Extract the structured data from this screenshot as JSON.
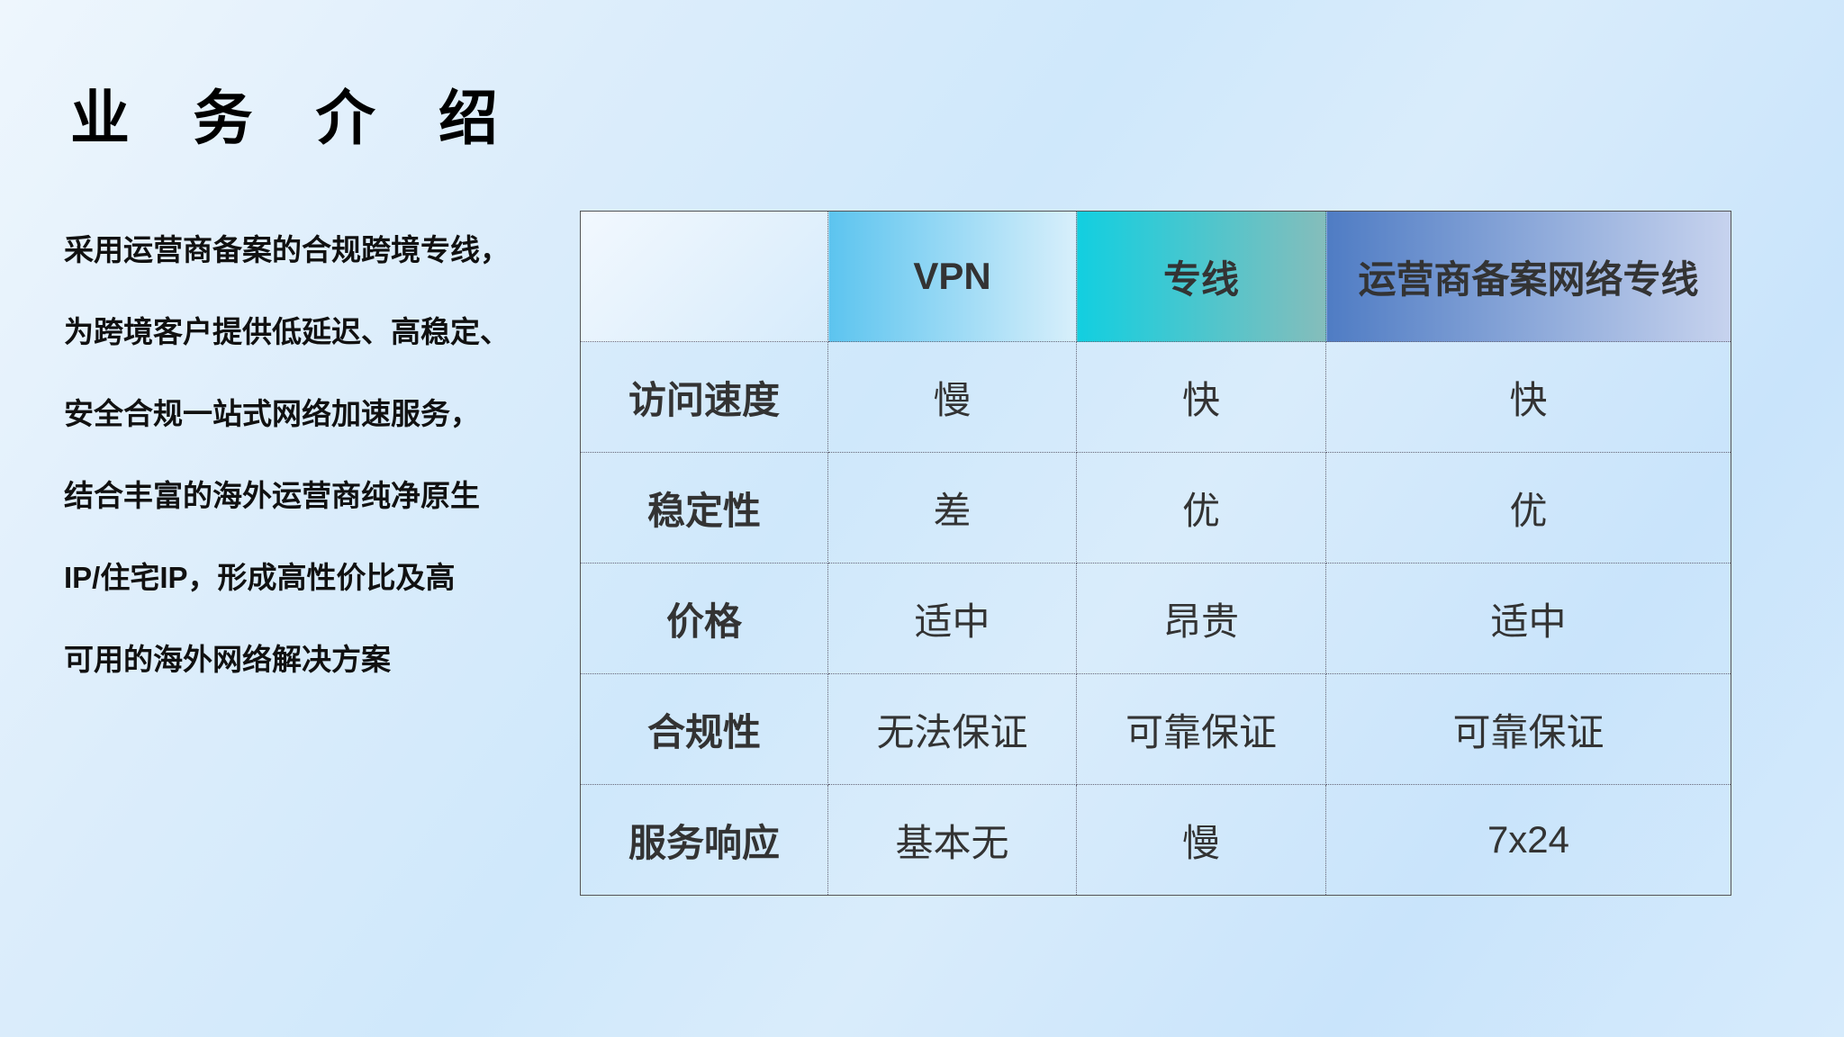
{
  "title": "业 务 介 绍",
  "intro": [
    "采用运营商备案的合规跨境专线，",
    "为跨境客户提供低延迟、高稳定、",
    "安全合规一站式网络加速服务，",
    "结合丰富的海外运营商纯净原生",
    "IP/住宅IP，形成高性价比及高",
    "可用的海外网络解决方案"
  ],
  "table": {
    "headers": [
      "",
      "VPN",
      "专线",
      "运营商备案网络专线"
    ],
    "header_colors": [
      "#5cc4ef",
      "#12cfe0",
      "#4f7cc4"
    ],
    "rows": [
      [
        "访问速度",
        "慢",
        "快",
        "快"
      ],
      [
        "稳定性",
        "差",
        "优",
        "优"
      ],
      [
        "价格",
        "适中",
        "昂贵",
        "适中"
      ],
      [
        "合规性",
        "无法保证",
        "可靠保证",
        "可靠保证"
      ],
      [
        "服务响应",
        "基本无",
        "慢",
        "7x24"
      ]
    ]
  }
}
